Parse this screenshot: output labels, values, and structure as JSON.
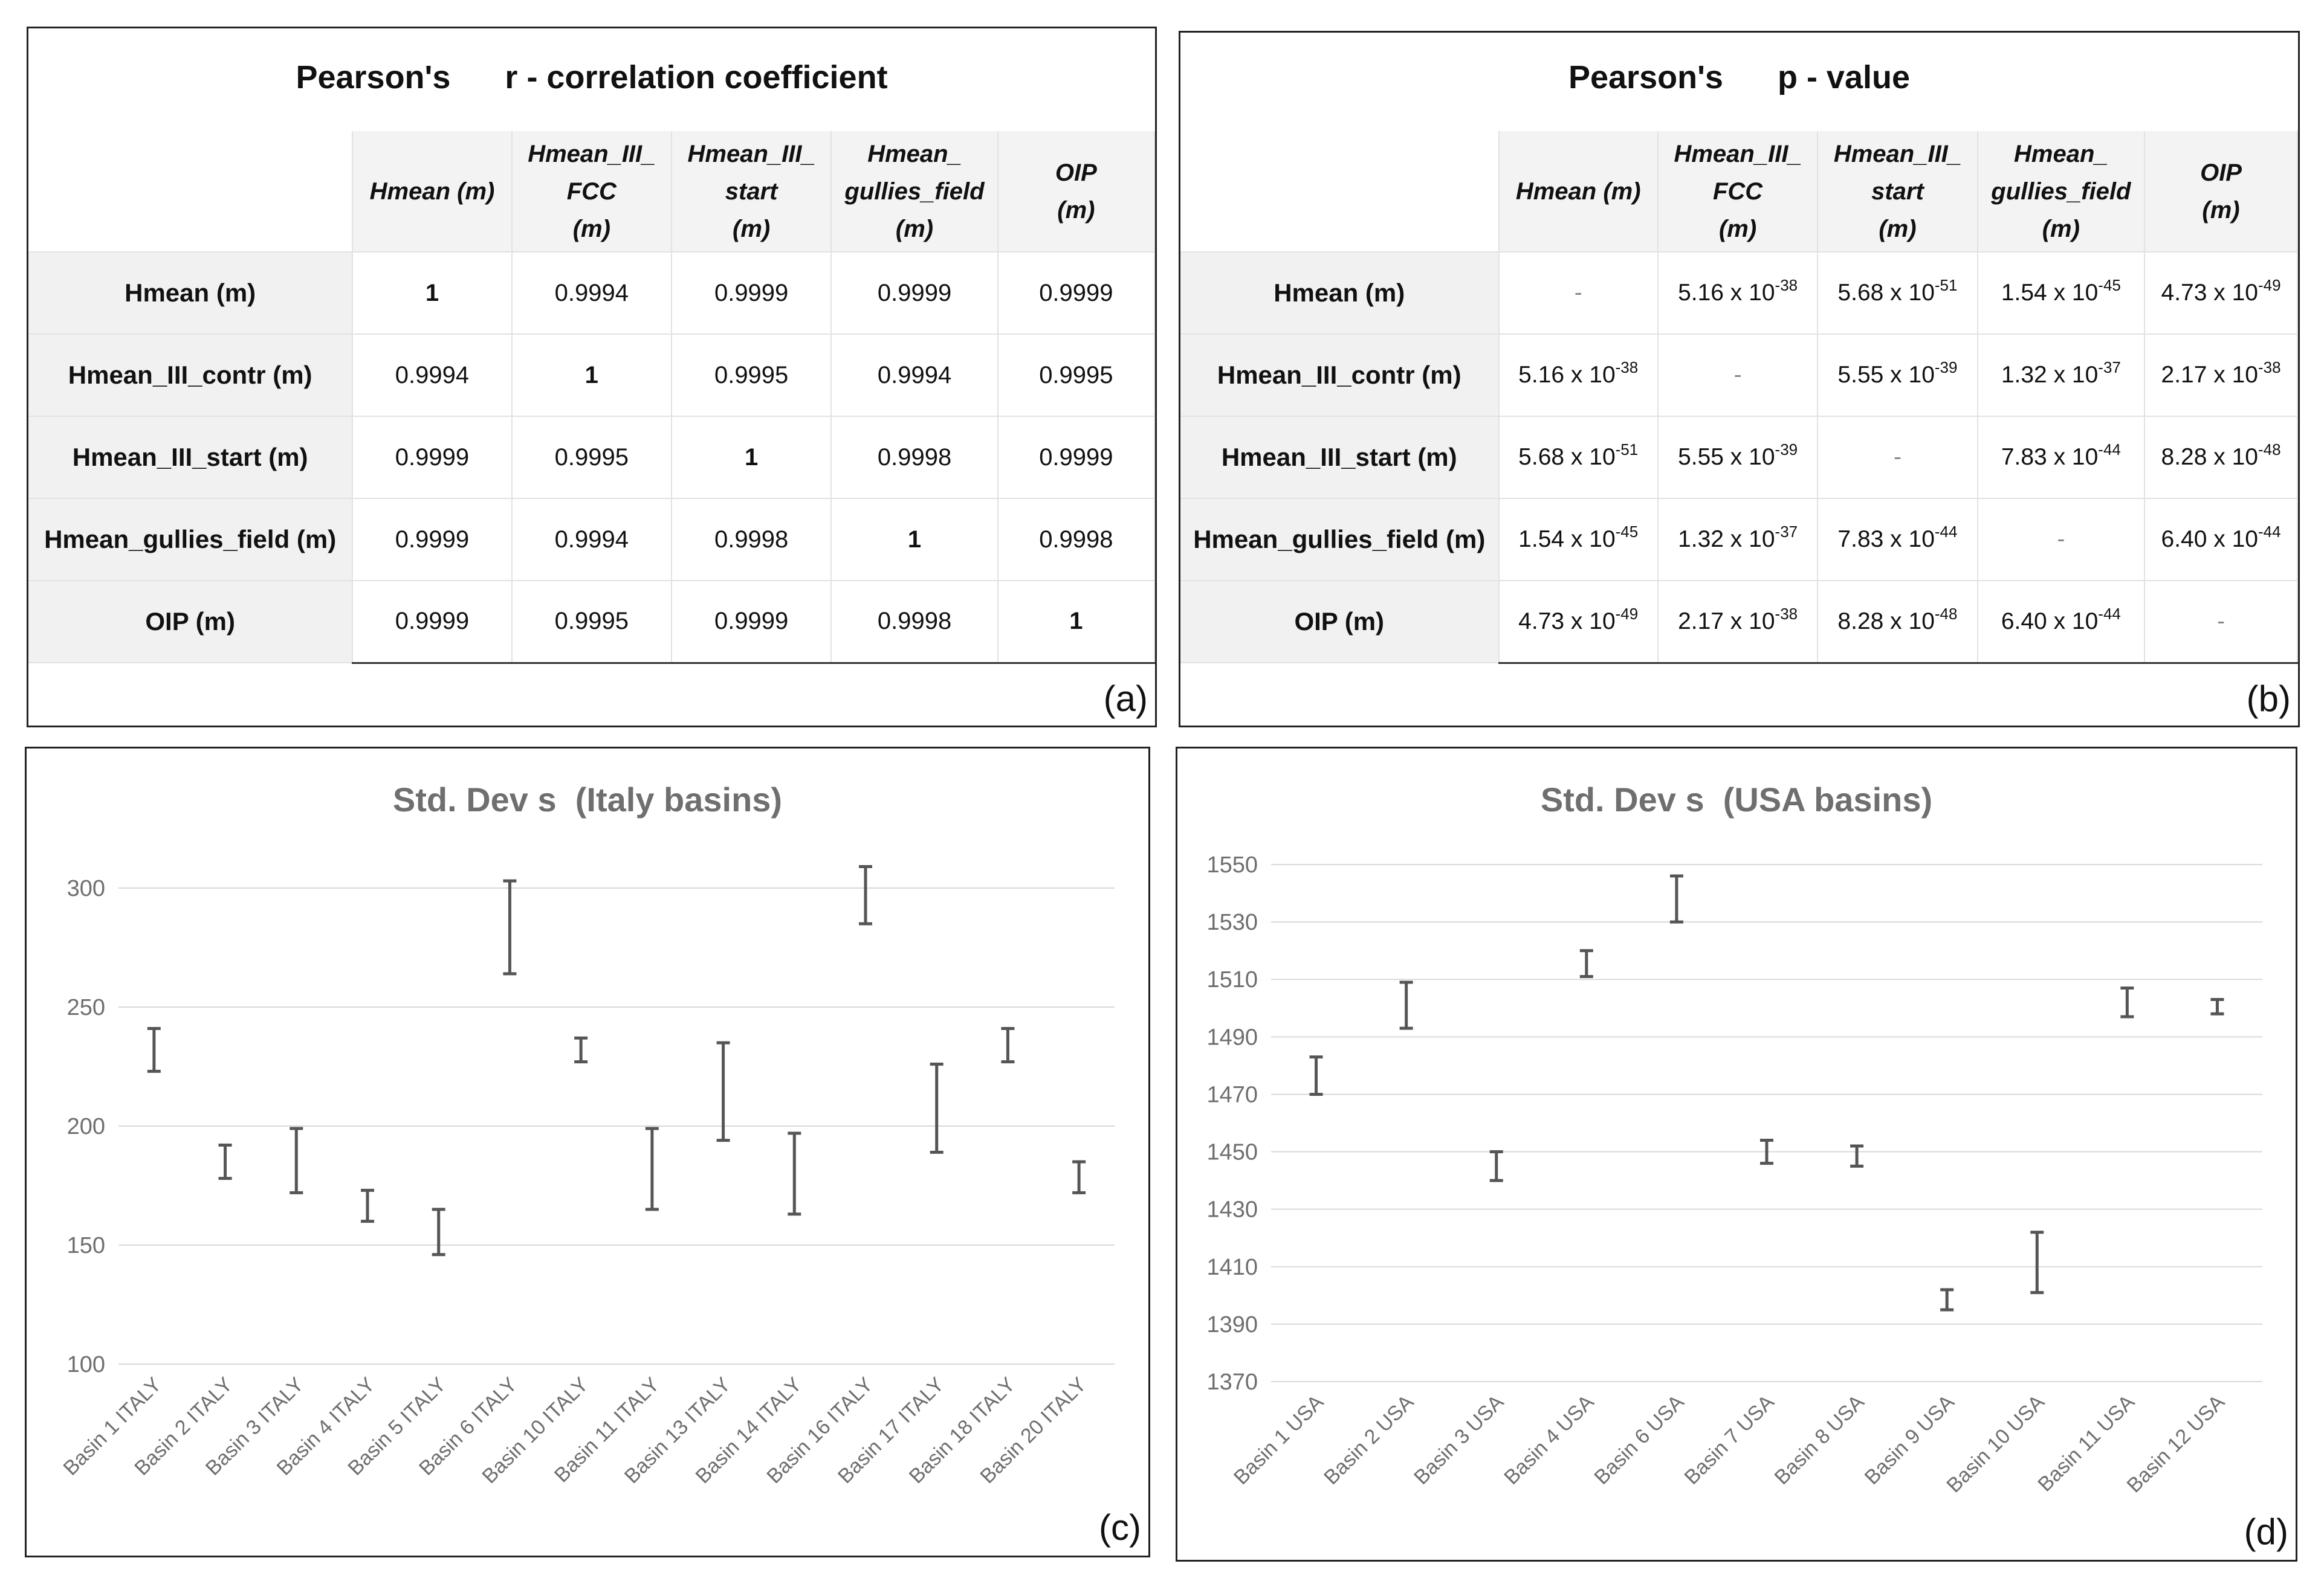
{
  "panel_a": {
    "title": "Pearson's      r - correlation coefficient",
    "letter": "(a)",
    "columns": [
      [
        "Hmean (m)"
      ],
      [
        "Hmean_III_",
        "FCC",
        "(m)"
      ],
      [
        "Hmean_III_",
        "start",
        "(m)"
      ],
      [
        "Hmean_",
        "gullies_field",
        "(m)"
      ],
      [
        "OIP",
        "(m)"
      ]
    ],
    "rows": [
      {
        "label": "Hmean (m)",
        "cells": [
          "1",
          "0.9994",
          "0.9999",
          "0.9999",
          "0.9999"
        ]
      },
      {
        "label": "Hmean_III_contr (m)",
        "cells": [
          "0.9994",
          "1",
          "0.9995",
          "0.9994",
          "0.9995"
        ]
      },
      {
        "label": "Hmean_III_start (m)",
        "cells": [
          "0.9999",
          "0.9995",
          "1",
          "0.9998",
          "0.9999"
        ]
      },
      {
        "label": "Hmean_gullies_field (m)",
        "cells": [
          "0.9999",
          "0.9994",
          "0.9998",
          "1",
          "0.9998"
        ]
      },
      {
        "label": "OIP (m)",
        "cells": [
          "0.9999",
          "0.9995",
          "0.9999",
          "0.9998",
          "1"
        ]
      }
    ]
  },
  "panel_b": {
    "title": "Pearson's      p - value",
    "letter": "(b)",
    "columns": [
      [
        "Hmean (m)"
      ],
      [
        "Hmean_III_",
        "FCC",
        "(m)"
      ],
      [
        "Hmean_III_",
        "start",
        "(m)"
      ],
      [
        "Hmean_",
        "gullies_field",
        "(m)"
      ],
      [
        "OIP",
        "(m)"
      ]
    ],
    "rows": [
      {
        "label": "Hmean (m)",
        "cells": [
          null,
          {
            "m": "5.16 x 10",
            "e": "-38"
          },
          {
            "m": "5.68 x 10",
            "e": "-51"
          },
          {
            "m": "1.54 x 10",
            "e": "-45"
          },
          {
            "m": "4.73 x 10",
            "e": "-49"
          }
        ]
      },
      {
        "label": "Hmean_III_contr (m)",
        "cells": [
          {
            "m": "5.16 x 10",
            "e": "-38"
          },
          null,
          {
            "m": "5.55 x 10",
            "e": "-39"
          },
          {
            "m": "1.32 x 10",
            "e": "-37"
          },
          {
            "m": "2.17 x 10",
            "e": "-38"
          }
        ]
      },
      {
        "label": "Hmean_III_start (m)",
        "cells": [
          {
            "m": "5.68 x 10",
            "e": "-51"
          },
          {
            "m": "5.55 x 10",
            "e": "-39"
          },
          null,
          {
            "m": "7.83 x 10",
            "e": "-44"
          },
          {
            "m": "8.28 x 10",
            "e": "-48"
          }
        ]
      },
      {
        "label": "Hmean_gullies_field (m)",
        "cells": [
          {
            "m": "1.54 x 10",
            "e": "-45"
          },
          {
            "m": "1.32 x 10",
            "e": "-37"
          },
          {
            "m": "7.83 x 10",
            "e": "-44"
          },
          null,
          {
            "m": "6.40 x 10",
            "e": "-44"
          }
        ]
      },
      {
        "label": "OIP (m)",
        "cells": [
          {
            "m": "4.73 x 10",
            "e": "-49"
          },
          {
            "m": "2.17 x 10",
            "e": "-38"
          },
          {
            "m": "8.28 x 10",
            "e": "-48"
          },
          {
            "m": "6.40 x 10",
            "e": "-44"
          },
          null
        ]
      }
    ],
    "dash": "-"
  },
  "chart_data": [
    {
      "type": "errorbar",
      "panel": "(c)",
      "title": "Std. Dev s  (Italy basins)",
      "ylim": [
        100,
        300
      ],
      "yticks": [
        100,
        150,
        200,
        250,
        300
      ],
      "grid": true,
      "categories": [
        "Basin 1 ITALY",
        "Basin 2 ITALY",
        "Basin 3 ITALY",
        "Basin 4 ITALY",
        "Basin 5 ITALY",
        "Basin 6 ITALY",
        "Basin 10 ITALY",
        "Basin 11 ITALY",
        "Basin 13 ITALY",
        "Basin 14 ITALY",
        "Basin 16 ITALY",
        "Basin 17 ITALY",
        "Basin 18 ITALY",
        "Basin 20 ITALY"
      ],
      "low": [
        223,
        178,
        172,
        160,
        146,
        264,
        227,
        165,
        194,
        163,
        285,
        189,
        227,
        172
      ],
      "high": [
        241,
        192,
        199,
        173,
        165,
        303,
        237,
        199,
        235,
        197,
        309,
        226,
        241,
        185
      ]
    },
    {
      "type": "errorbar",
      "panel": "(d)",
      "title": "Std. Dev s  (USA basins)",
      "ylim": [
        1370,
        1550
      ],
      "yticks": [
        1370,
        1390,
        1410,
        1430,
        1450,
        1470,
        1490,
        1510,
        1530,
        1550
      ],
      "grid": true,
      "categories": [
        "Basin 1 USA",
        "Basin 2 USA",
        "Basin 3 USA",
        "Basin 4 USA",
        "Basin 6 USA",
        "Basin 7 USA",
        "Basin 8 USA",
        "Basin 9 USA",
        "Basin 10 USA",
        "Basin 11 USA",
        "Basin 12 USA"
      ],
      "low": [
        1470,
        1493,
        1440,
        1511,
        1530,
        1446,
        1445,
        1395,
        1401,
        1497,
        1498
      ],
      "high": [
        1483,
        1509,
        1450,
        1520,
        1546,
        1454,
        1452,
        1402,
        1422,
        1507,
        1503
      ]
    }
  ]
}
